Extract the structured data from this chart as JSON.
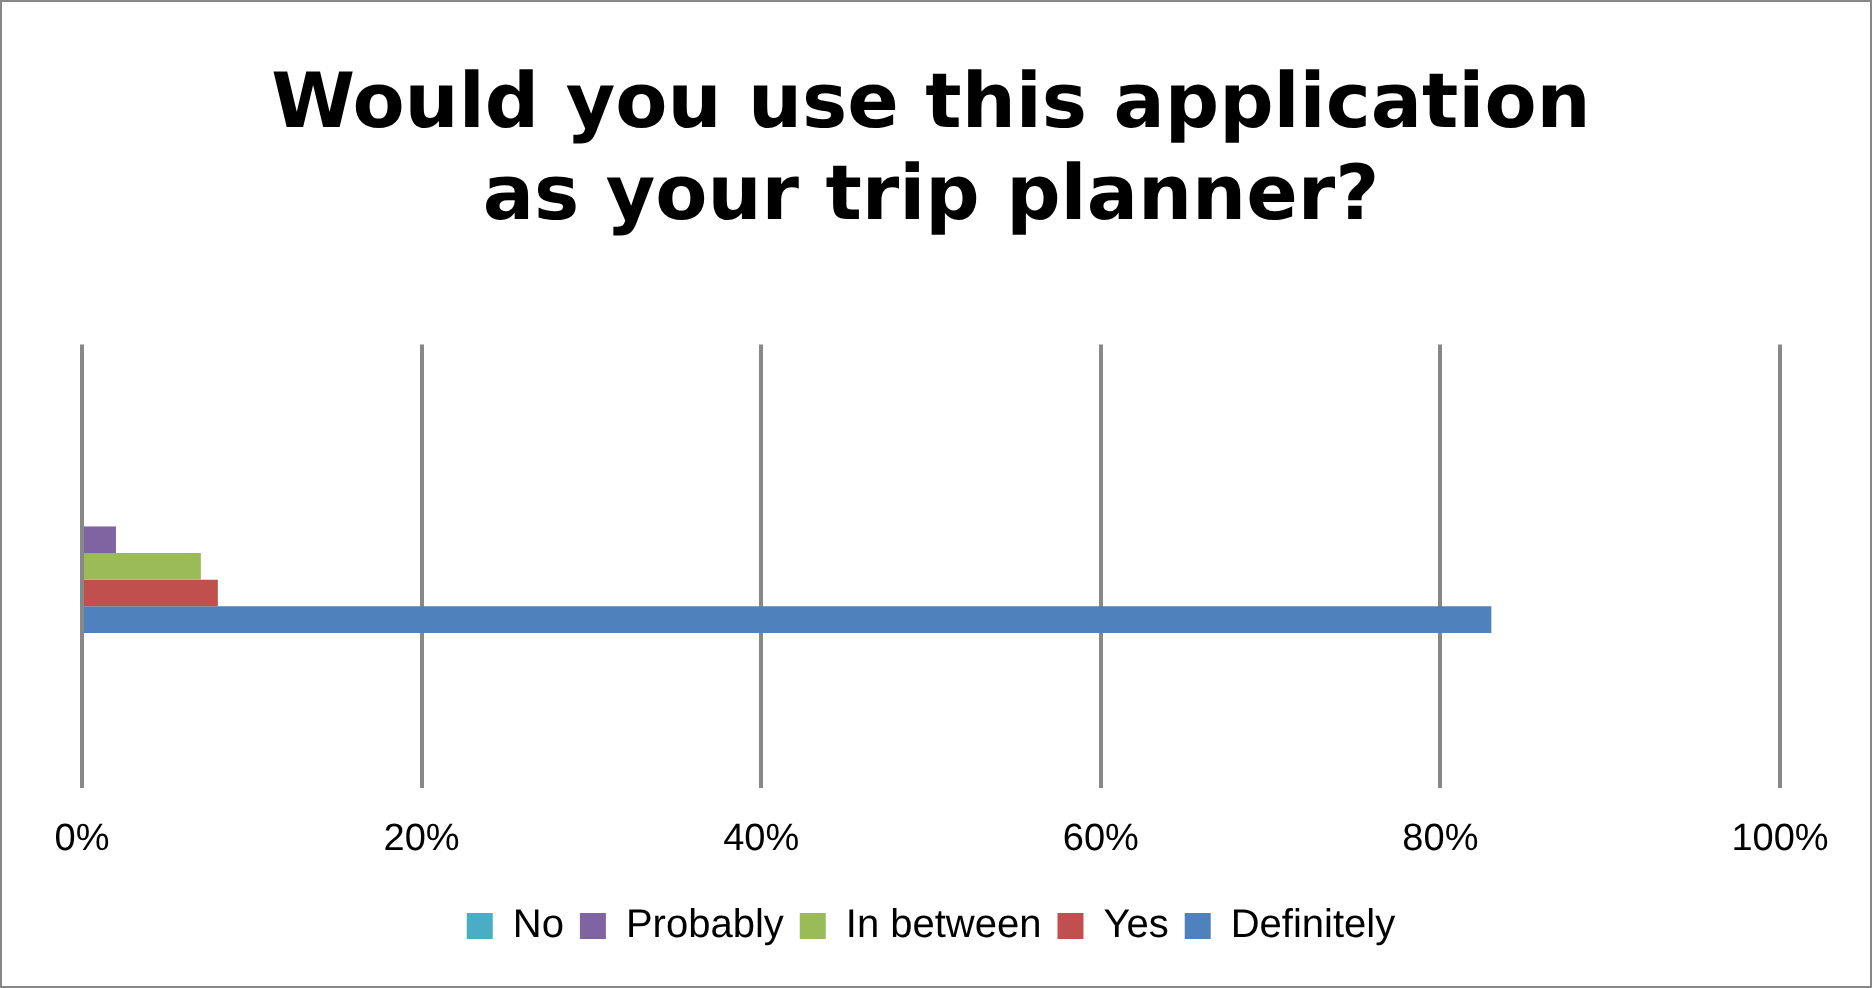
{
  "chart_data": {
    "type": "bar",
    "title": "Would you use this application as your trip planner?",
    "orientation": "horizontal",
    "categories": [
      null
    ],
    "series": [
      {
        "name": "No",
        "color": "#4bacc6",
        "values": [
          0
        ]
      },
      {
        "name": "Probably",
        "color": "#8064a2",
        "values": [
          2
        ]
      },
      {
        "name": "In between",
        "color": "#9bbb59",
        "values": [
          7
        ]
      },
      {
        "name": "Yes",
        "color": "#c0504d",
        "values": [
          8
        ]
      },
      {
        "name": "Definitely",
        "color": "#4f81bd",
        "values": [
          83
        ]
      }
    ],
    "xlim": [
      0,
      100
    ],
    "xticks": [
      {
        "value": 0,
        "label": "0%"
      },
      {
        "value": 20,
        "label": "20%"
      },
      {
        "value": 40,
        "label": "40%"
      },
      {
        "value": 60,
        "label": "60%"
      },
      {
        "value": 80,
        "label": "80%"
      },
      {
        "value": 100,
        "label": "100%"
      }
    ],
    "grid": "x",
    "legend": "bottom"
  }
}
